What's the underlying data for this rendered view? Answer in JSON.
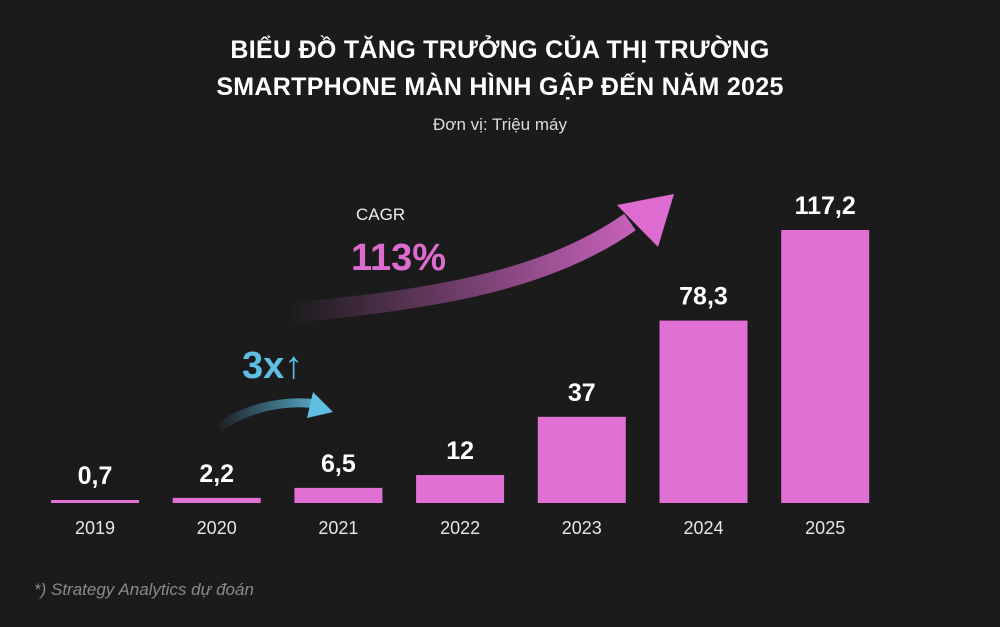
{
  "chart_data": {
    "type": "bar",
    "title": "BIỂU ĐỒ TĂNG TRƯỞNG CỦA THỊ TRƯỜNG SMARTPHONE MÀN HÌNH GẬP ĐẾN NĂM 2025",
    "title_lines": [
      "BIỂU ĐỒ TĂNG TRƯỞNG CỦA THỊ TRƯỜNG",
      "SMARTPHONE MÀN HÌNH GẬP ĐẾN NĂM 2025"
    ],
    "subtitle": "Đơn vị: Triệu máy",
    "categories": [
      "2019",
      "2020",
      "2021",
      "2022",
      "2023",
      "2024",
      "2025"
    ],
    "values": [
      0.7,
      2.2,
      6.5,
      12,
      37,
      78.3,
      117.2
    ],
    "value_labels": [
      "0,7",
      "2,2",
      "6,5",
      "12",
      "37",
      "78,3",
      "117,2"
    ],
    "xlabel": "",
    "ylabel": "",
    "ylim": [
      0,
      117.2
    ],
    "grid": false,
    "annotations": {
      "cagr_label": "CAGR",
      "cagr_value": "113%",
      "multiplier": "3x↑"
    },
    "footnote": "*) Strategy Analytics dự đoán",
    "colors": {
      "bar": "#e070d4",
      "cagr": "#de6bd0",
      "multiplier": "#5fbfe3",
      "background": "#1b1b1c"
    }
  }
}
